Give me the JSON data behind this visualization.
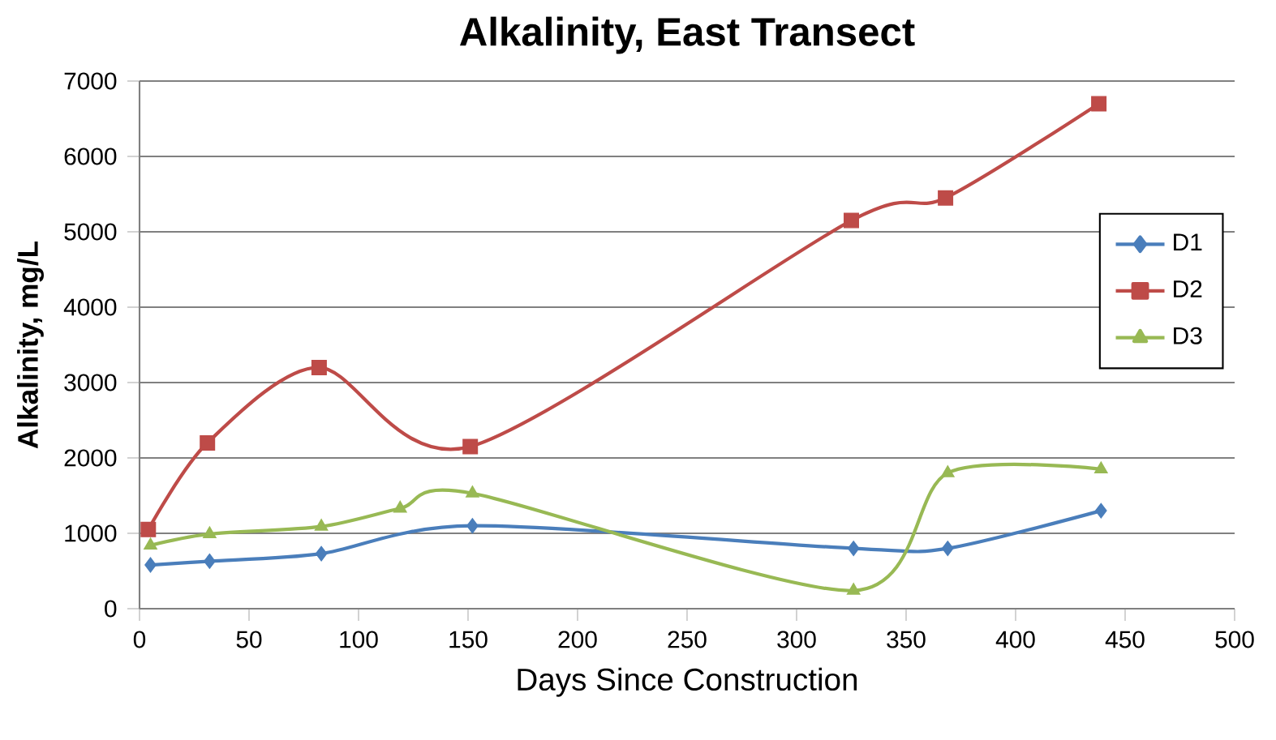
{
  "chart_data": {
    "type": "line",
    "title": "Alkalinity, East Transect",
    "xlabel": "Days Since Construction",
    "ylabel": "Alkalinity, mg/L",
    "xlim": [
      0,
      500
    ],
    "xticks": [
      0,
      50,
      100,
      150,
      200,
      250,
      300,
      350,
      400,
      450,
      500
    ],
    "ylim": [
      0,
      7000
    ],
    "yticks": [
      0,
      1000,
      2000,
      3000,
      4000,
      5000,
      6000,
      7000
    ],
    "grid": "y",
    "legend": "right",
    "line_style": "solid",
    "series": [
      {
        "name": "D1",
        "color": "#4a7ebb",
        "marker": "diamond",
        "x": [
          5,
          32,
          83,
          152,
          326,
          369,
          439
        ],
        "values": [
          580,
          630,
          730,
          1100,
          800,
          800,
          1300
        ]
      },
      {
        "name": "D2",
        "color": "#be4b48",
        "marker": "square",
        "x": [
          4,
          31,
          82,
          151,
          325,
          368,
          438
        ],
        "values": [
          1050,
          2200,
          3200,
          2150,
          5150,
          5450,
          6700
        ]
      },
      {
        "name": "D3",
        "color": "#98b954",
        "marker": "triangle",
        "x": [
          5,
          32,
          83,
          119,
          152,
          326,
          369,
          439
        ],
        "values": [
          840,
          990,
          1090,
          1330,
          1530,
          240,
          1800,
          1850
        ]
      }
    ]
  }
}
